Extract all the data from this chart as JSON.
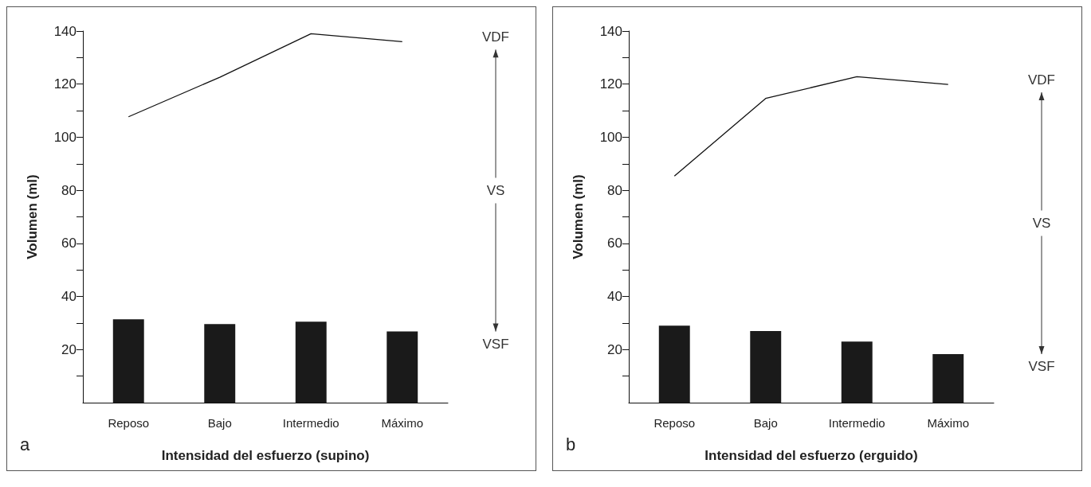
{
  "chart_data": [
    {
      "type": "bar",
      "categories": [
        "Reposo",
        "Bajo",
        "Intermedio",
        "Máximo"
      ],
      "xlabel": "Intensidad del esfuerzo (supino)",
      "ylabel": "Volumen (ml)",
      "series": [
        {
          "color": "#1a1a1a",
          "values": [
            31.4,
            29.6,
            30.5,
            26.8
          ]
        },
        {
          "type": "line",
          "color": "#111111",
          "values": [
            107.7,
            122.6,
            139,
            136
          ]
        }
      ],
      "ylim": [
        0,
        140
      ],
      "yticks": [
        {
          "value": 10,
          "label": null
        },
        20,
        {
          "value": 30,
          "label": null
        },
        40,
        {
          "value": 50,
          "label": null
        },
        60,
        {
          "value": 70,
          "label": null
        },
        80,
        {
          "value": 90,
          "label": null
        },
        100,
        {
          "value": 110,
          "label": null
        },
        120,
        {
          "value": 130,
          "label": null
        },
        140
      ],
      "annotations": [
        "VDF",
        "VS",
        "VSF",
        "a"
      ],
      "grid": false,
      "marker": "none"
    },
    {
      "type": "bar",
      "categories": [
        "Reposo",
        "Bajo",
        "Intermedio",
        "Máximo"
      ],
      "xlabel": "Intensidad del esfuerzo (erguido)",
      "ylabel": "Volumen (ml)",
      "series": [
        {
          "color": "#1a1a1a",
          "values": [
            29,
            27,
            23,
            18.3
          ]
        },
        {
          "type": "line",
          "color": "#111111",
          "values": [
            85.4,
            114.6,
            122.8,
            119.9
          ]
        }
      ],
      "ylim": [
        0,
        140
      ],
      "yticks": [
        {
          "value": 10,
          "label": null
        },
        20,
        {
          "value": 30,
          "label": null
        },
        40,
        {
          "value": 50,
          "label": null
        },
        60,
        {
          "value": 70,
          "label": null
        },
        80,
        {
          "value": 90,
          "label": null
        },
        100,
        {
          "value": 110,
          "label": null
        },
        120,
        {
          "value": 130,
          "label": null
        },
        140
      ],
      "annotations": [
        "VDF",
        "VS",
        "VSF",
        "b"
      ],
      "grid": false,
      "marker": "none"
    }
  ]
}
